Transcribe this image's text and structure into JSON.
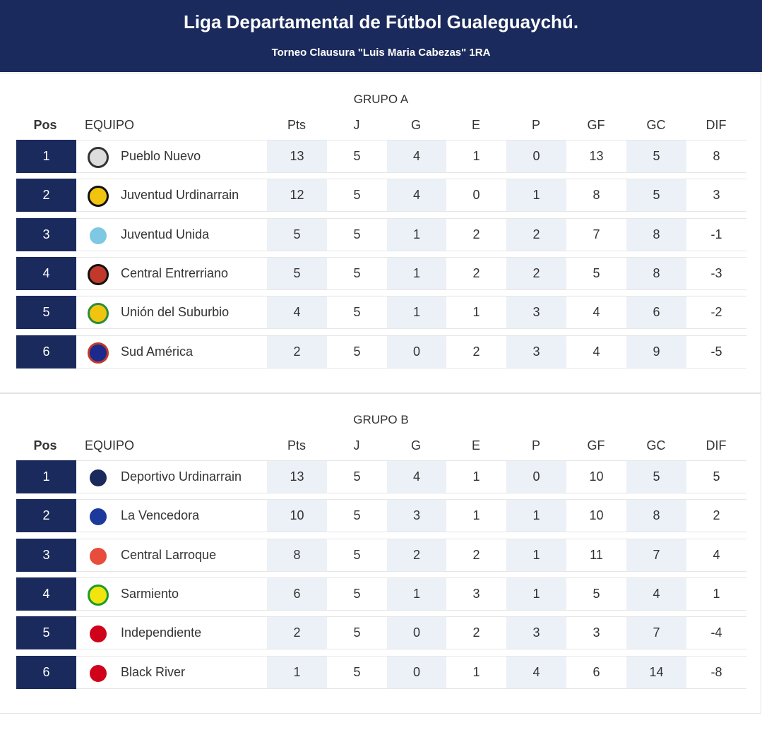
{
  "header": {
    "title": "Liga Departamental de Fútbol Gualeguaychú.",
    "subtitle": "Torneo Clausura \"Luis Maria Cabezas\" 1RA"
  },
  "groups": [
    {
      "name": "GRUPO A",
      "columns": [
        "Pos",
        "EQUIPO",
        "Pts",
        "J",
        "G",
        "E",
        "P",
        "GF",
        "GC",
        "DIF"
      ],
      "rows": [
        [
          1,
          "Pueblo Nuevo",
          13,
          5,
          4,
          1,
          0,
          13,
          5,
          8
        ],
        [
          2,
          "Juventud Urdinarrain",
          12,
          5,
          4,
          0,
          1,
          8,
          5,
          3
        ],
        [
          3,
          "Juventud Unida",
          5,
          5,
          1,
          2,
          2,
          7,
          8,
          -1
        ],
        [
          4,
          "Central Entrerriano",
          5,
          5,
          1,
          2,
          2,
          5,
          8,
          -3
        ],
        [
          5,
          "Unión del Suburbio",
          4,
          5,
          1,
          1,
          3,
          4,
          6,
          -2
        ],
        [
          6,
          "Sud América",
          2,
          5,
          0,
          2,
          3,
          4,
          9,
          -5
        ]
      ]
    },
    {
      "name": "GRUPO B",
      "columns": [
        "Pos",
        "EQUIPO",
        "Pts",
        "J",
        "G",
        "E",
        "P",
        "GF",
        "GC",
        "DIF"
      ],
      "rows": [
        [
          1,
          "Deportivo Urdinarrain",
          13,
          5,
          4,
          1,
          0,
          10,
          5,
          5
        ],
        [
          2,
          "La Vencedora",
          10,
          5,
          3,
          1,
          1,
          10,
          8,
          2
        ],
        [
          3,
          "Central Larroque",
          8,
          5,
          2,
          2,
          1,
          11,
          7,
          4
        ],
        [
          4,
          "Sarmiento",
          6,
          5,
          1,
          3,
          1,
          5,
          4,
          1
        ],
        [
          5,
          "Independiente",
          2,
          5,
          0,
          2,
          3,
          3,
          7,
          -4
        ],
        [
          6,
          "Black River",
          1,
          5,
          0,
          1,
          4,
          6,
          14,
          -8
        ]
      ]
    }
  ]
}
